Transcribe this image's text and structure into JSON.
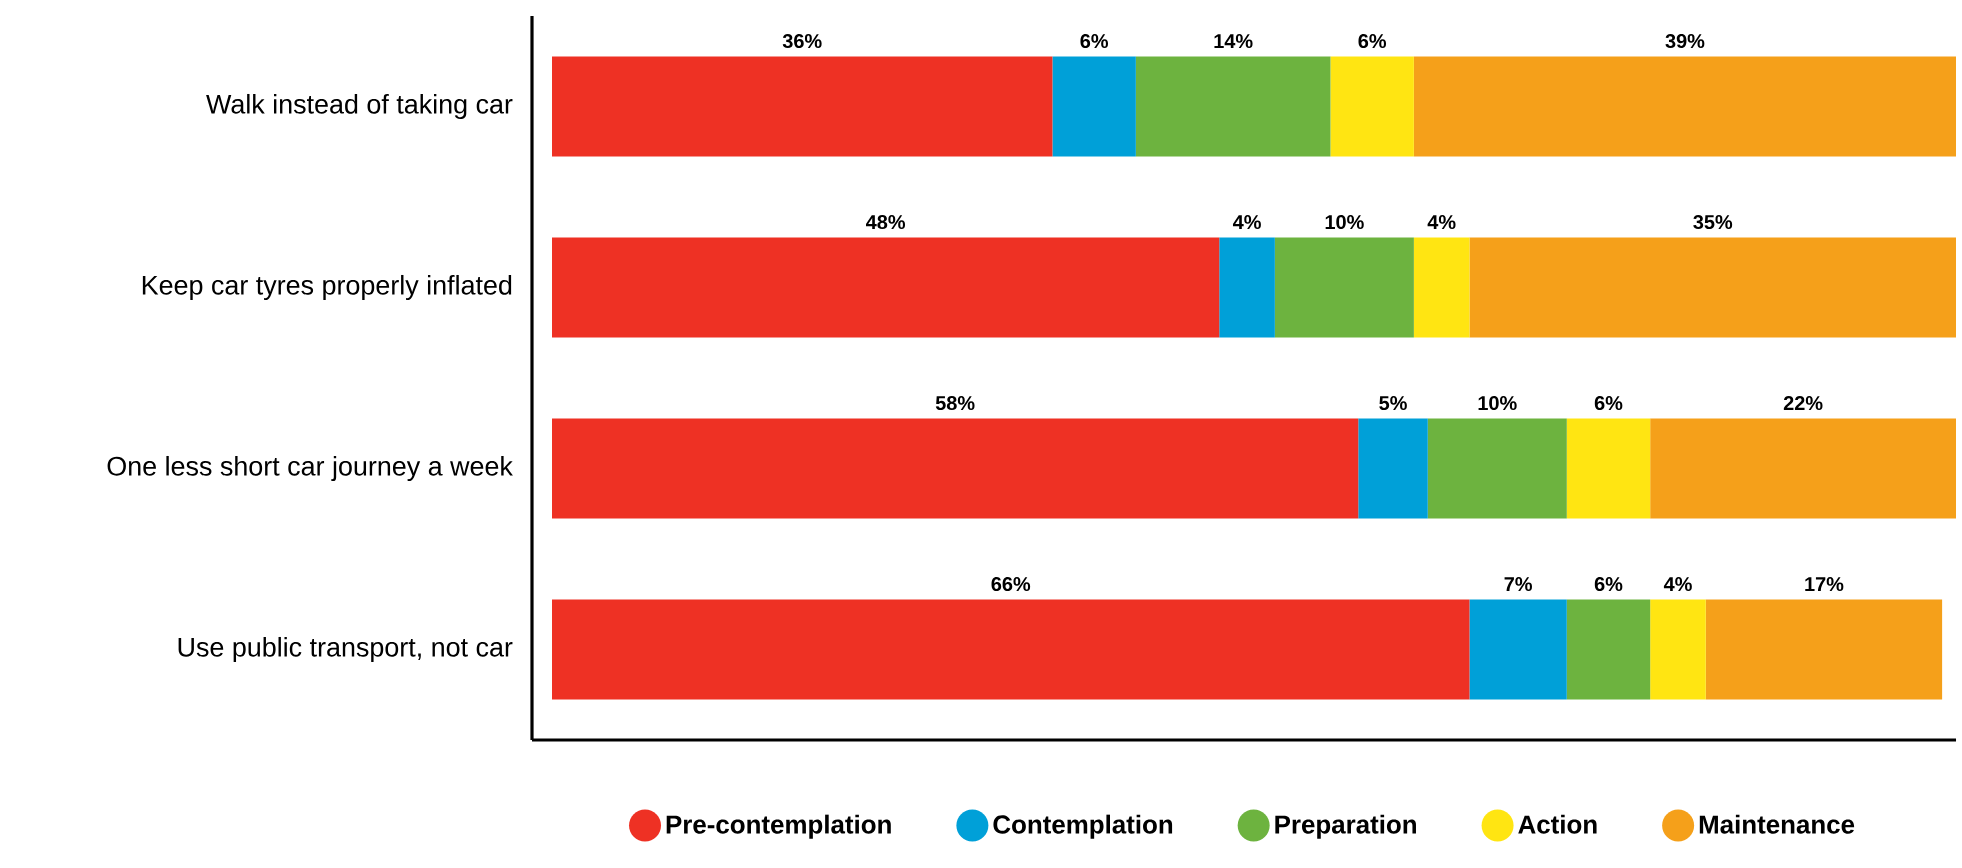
{
  "chart_data": {
    "type": "bar",
    "orientation": "horizontal",
    "stacked": true,
    "legend": "bottom",
    "categories": [
      "Walk instead of taking car",
      "Keep car tyres properly inflated",
      "One less short car journey a week",
      "Use public transport, not car"
    ],
    "series": [
      {
        "name": "Pre-contemplation",
        "color": "#ee3124",
        "values": [
          36,
          48,
          58,
          66
        ],
        "value_labels": [
          "36%",
          "48%",
          "58%",
          "66%"
        ]
      },
      {
        "name": "Contemplation",
        "color": "#00a0d8",
        "values": [
          6,
          4,
          5,
          7
        ],
        "value_labels": [
          "6%",
          "4%",
          "5%",
          "7%"
        ]
      },
      {
        "name": "Preparation",
        "color": "#6db33f",
        "values": [
          14,
          10,
          10,
          6
        ],
        "value_labels": [
          "14%",
          "10%",
          "10%",
          "6%"
        ]
      },
      {
        "name": "Action",
        "color": "#ffe512",
        "values": [
          6,
          4,
          6,
          4
        ],
        "value_labels": [
          "6%",
          "4%",
          "6%",
          "4%"
        ]
      },
      {
        "name": "Maintenance",
        "color": "#f5a01a",
        "values": [
          39,
          35,
          22,
          17
        ],
        "value_labels": [
          "39%",
          "35%",
          "22%",
          "17%"
        ]
      }
    ]
  }
}
